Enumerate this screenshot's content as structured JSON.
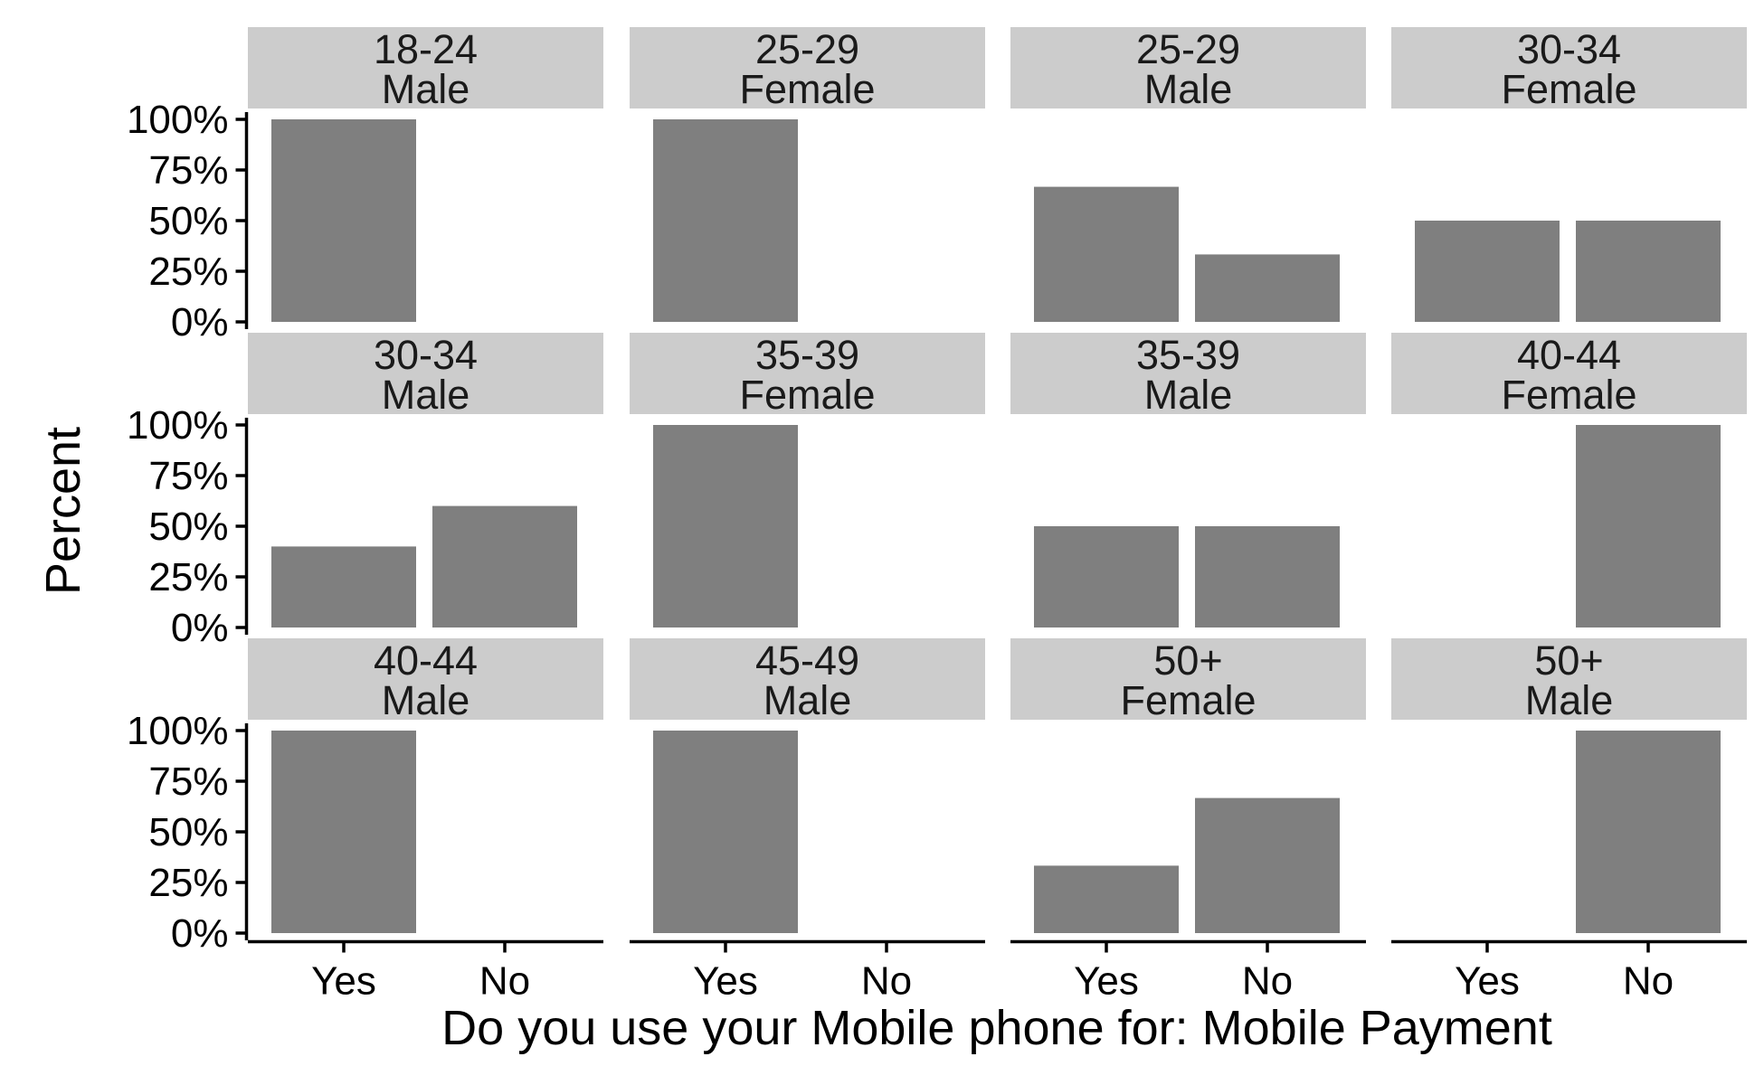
{
  "chart_data": {
    "type": "bar",
    "layout": "facet-grid",
    "xlabel": "Do you use your Mobile phone for: Mobile Payment",
    "ylabel": "Percent",
    "categories": [
      "Yes",
      "No"
    ],
    "ylim": [
      0,
      1
    ],
    "yticks": [
      {
        "value": 0,
        "label": "0%"
      },
      {
        "value": 0.25,
        "label": "25%"
      },
      {
        "value": 0.5,
        "label": "50%"
      },
      {
        "value": 0.75,
        "label": "75%"
      },
      {
        "value": 1,
        "label": "100%"
      }
    ],
    "bar_color": "#7f7f7f",
    "strip_color": "#cccccc",
    "grid": false,
    "legend": "none",
    "panels": [
      {
        "age": "18-24",
        "gender": "Male",
        "values": [
          1.0,
          0.0
        ]
      },
      {
        "age": "25-29",
        "gender": "Female",
        "values": [
          1.0,
          0.0
        ]
      },
      {
        "age": "25-29",
        "gender": "Male",
        "values": [
          0.667,
          0.333
        ]
      },
      {
        "age": "30-34",
        "gender": "Female",
        "values": [
          0.5,
          0.5
        ]
      },
      {
        "age": "30-34",
        "gender": "Male",
        "values": [
          0.4,
          0.6
        ]
      },
      {
        "age": "35-39",
        "gender": "Female",
        "values": [
          1.0,
          0.0
        ]
      },
      {
        "age": "35-39",
        "gender": "Male",
        "values": [
          0.5,
          0.5
        ]
      },
      {
        "age": "40-44",
        "gender": "Female",
        "values": [
          0.0,
          1.0
        ]
      },
      {
        "age": "40-44",
        "gender": "Male",
        "values": [
          1.0,
          0.0
        ]
      },
      {
        "age": "45-49",
        "gender": "Male",
        "values": [
          1.0,
          0.0
        ]
      },
      {
        "age": "50+",
        "gender": "Female",
        "values": [
          0.333,
          0.667
        ]
      },
      {
        "age": "50+",
        "gender": "Male",
        "values": [
          0.0,
          1.0
        ]
      }
    ]
  }
}
